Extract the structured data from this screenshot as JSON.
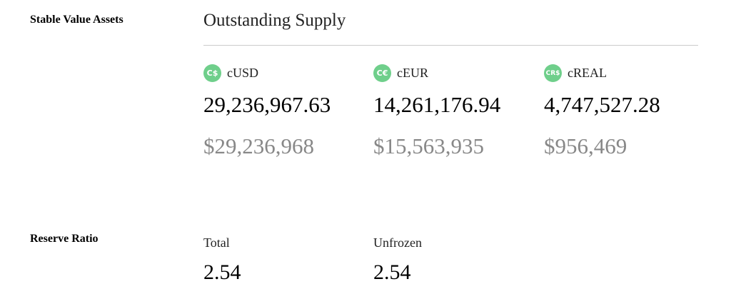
{
  "stable": {
    "label": "Stable Value Assets",
    "title": "Outstanding Supply",
    "tokens": [
      {
        "symbol": "cUSD",
        "icon": "C$",
        "amount": "29,236,967.63",
        "usd": "$29,236,968"
      },
      {
        "symbol": "cEUR",
        "icon": "C€",
        "amount": "14,261,176.94",
        "usd": "$15,563,935"
      },
      {
        "symbol": "cREAL",
        "icon": "CR$",
        "amount": "4,747,527.28",
        "usd": "$956,469"
      }
    ],
    "icon_color": "#6fcf8b"
  },
  "reserve": {
    "label": "Reserve Ratio",
    "items": [
      {
        "label": "Total",
        "value": "2.54"
      },
      {
        "label": "Unfrozen",
        "value": "2.54"
      }
    ]
  }
}
